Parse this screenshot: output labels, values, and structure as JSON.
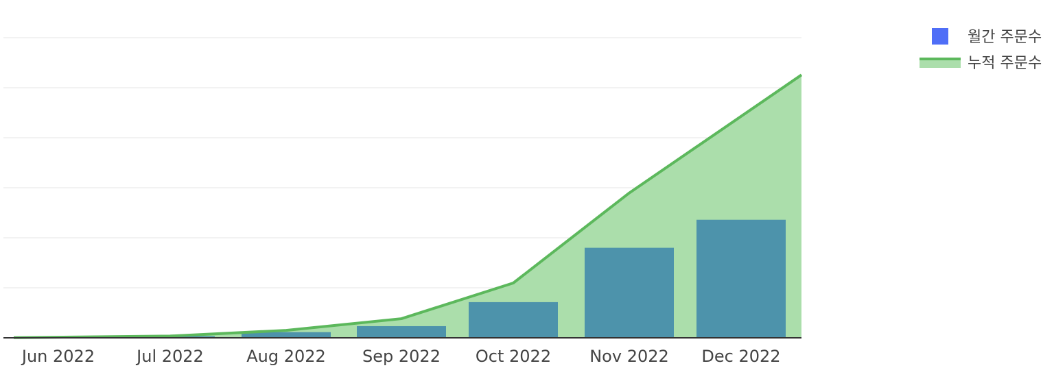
{
  "chart_data": {
    "type": "bar",
    "categories": [
      "Jun 2022",
      "Jul 2022",
      "Aug 2022",
      "Sep 2022",
      "Oct 2022",
      "Nov 2022",
      "Dec 2022"
    ],
    "series": [
      {
        "name": "월간 주문수",
        "type": "bar",
        "color": "#4f6ef7",
        "values": [
          2,
          25,
          85,
          175,
          535,
          1350,
          1770
        ]
      },
      {
        "name": "누적 주문수",
        "type": "area",
        "color": "#5cb85c",
        "fill": "#abdeab",
        "values": [
          2,
          27,
          112,
          287,
          822,
          2172,
          3942
        ]
      }
    ],
    "ylim": [
      0,
      4500
    ],
    "grid": true,
    "legend": "top-right",
    "colors": {
      "bar_over_area": "#4d93ab",
      "grid": "#e6e6e6",
      "axis": "#333333"
    }
  }
}
